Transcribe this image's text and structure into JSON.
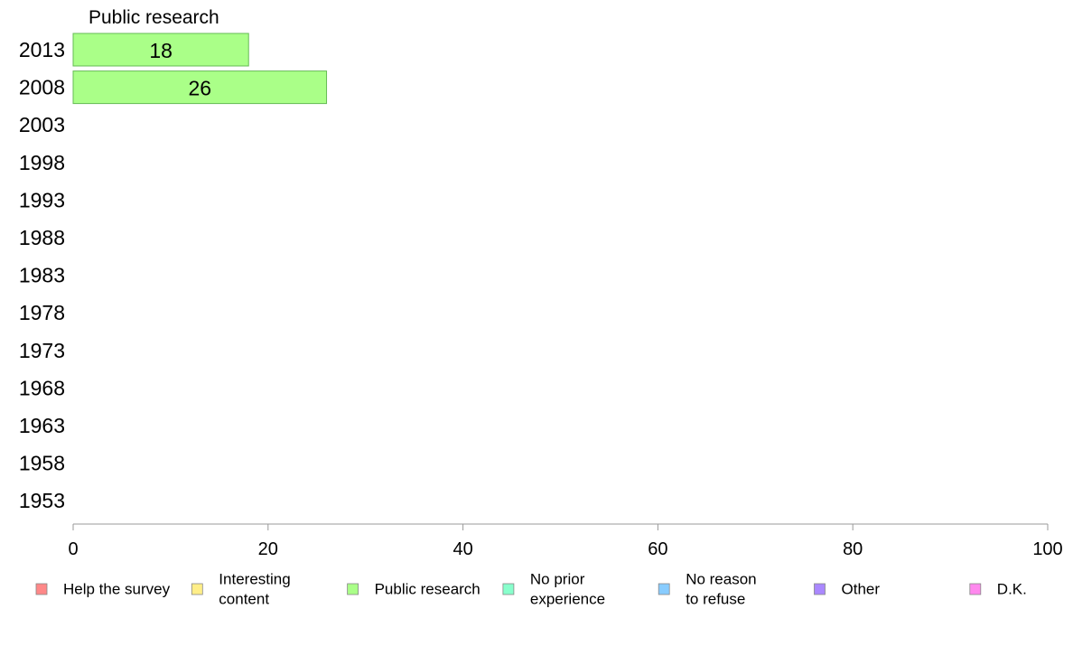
{
  "chart_data": {
    "type": "bar",
    "orientation": "horizontal",
    "categories": [
      "2013",
      "2008",
      "2003",
      "1998",
      "1993",
      "1988",
      "1983",
      "1978",
      "1973",
      "1968",
      "1963",
      "1958",
      "1953"
    ],
    "series": [
      {
        "name": "Public research",
        "values": [
          18,
          26,
          null,
          null,
          null,
          null,
          null,
          null,
          null,
          null,
          null,
          null,
          null
        ],
        "color": "#aaff88"
      }
    ],
    "bar_labels": [
      "18",
      "26"
    ],
    "xlim": [
      0,
      100
    ],
    "x_ticks": [
      "0",
      "20",
      "40",
      "60",
      "80",
      "100"
    ],
    "series_title": "Public research",
    "legend": [
      {
        "lines": [
          "Help the survey"
        ],
        "color": "#ff8888"
      },
      {
        "lines": [
          "Interesting",
          "content"
        ],
        "color": "#ffee88"
      },
      {
        "lines": [
          "Public research"
        ],
        "color": "#aaff88"
      },
      {
        "lines": [
          "No prior",
          "experience"
        ],
        "color": "#88ffcc"
      },
      {
        "lines": [
          "No reason",
          "to refuse"
        ],
        "color": "#88ccff"
      },
      {
        "lines": [
          "Other"
        ],
        "color": "#aa88ff"
      },
      {
        "lines": [
          "D.K."
        ],
        "color": "#ff88ee"
      }
    ],
    "legend_position": "bottom",
    "grid": false
  }
}
